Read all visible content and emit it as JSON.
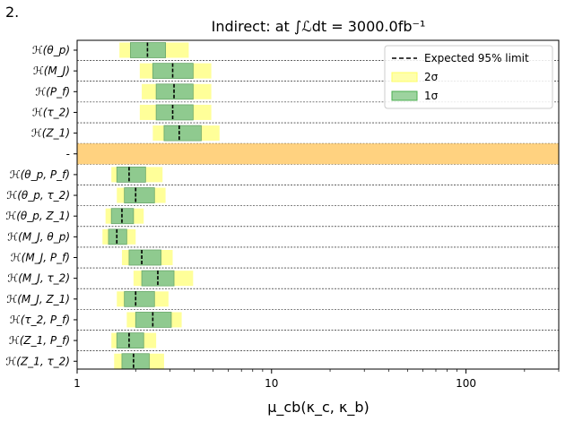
{
  "figure_label": "2.",
  "chart_data": {
    "type": "interval",
    "title": "Indirect: at ∫ℒdt = 3000.0fb⁻¹",
    "xlabel": "μ_cb(κ_c, κ_b)",
    "xscale": "log",
    "xlim": [
      1,
      300
    ],
    "xticks": [
      "1",
      "10",
      "100"
    ],
    "grid": "horizontal dashed separators between rows",
    "legend": {
      "placement": "top-right",
      "entries": [
        {
          "label": "Expected 95% limit",
          "style": "dashed",
          "color": "#000000"
        },
        {
          "label": "2σ",
          "color": "#ffff66"
        },
        {
          "label": "1σ",
          "color": "#4caf50"
        }
      ]
    },
    "colors": {
      "two_sigma": "#ffff99",
      "one_sigma": "#8fca8f",
      "separator_band": "#ffd280",
      "limit": "#000000"
    },
    "rows": [
      {
        "label": "ℋ(θ_p)",
        "two_sigma": [
          1.65,
          3.75
        ],
        "one_sigma": [
          1.88,
          2.85
        ],
        "limit": 2.3
      },
      {
        "label": "ℋ(M_J)",
        "two_sigma": [
          2.1,
          4.9
        ],
        "one_sigma": [
          2.45,
          3.95
        ],
        "limit": 3.1
      },
      {
        "label": "ℋ(P_f)",
        "two_sigma": [
          2.15,
          4.9
        ],
        "one_sigma": [
          2.55,
          3.95
        ],
        "limit": 3.15
      },
      {
        "label": "ℋ(τ_2)",
        "two_sigma": [
          2.1,
          4.9
        ],
        "one_sigma": [
          2.55,
          3.95
        ],
        "limit": 3.1
      },
      {
        "label": "ℋ(Z_1)",
        "two_sigma": [
          2.45,
          5.4
        ],
        "one_sigma": [
          2.8,
          4.35
        ],
        "limit": 3.35
      },
      {
        "label": "-",
        "separator": true
      },
      {
        "label": "ℋ(θ_p, P_f)",
        "two_sigma": [
          1.5,
          2.75
        ],
        "one_sigma": [
          1.6,
          2.25
        ],
        "limit": 1.85
      },
      {
        "label": "ℋ(θ_p, τ_2)",
        "two_sigma": [
          1.6,
          2.85
        ],
        "one_sigma": [
          1.75,
          2.5
        ],
        "limit": 2.0
      },
      {
        "label": "ℋ(θ_p, Z_1)",
        "two_sigma": [
          1.4,
          2.2
        ],
        "one_sigma": [
          1.5,
          1.95
        ],
        "limit": 1.7
      },
      {
        "label": "ℋ(M_J, θ_p)",
        "two_sigma": [
          1.35,
          2.0
        ],
        "one_sigma": [
          1.45,
          1.8
        ],
        "limit": 1.6
      },
      {
        "label": "ℋ(M_J, P_f)",
        "two_sigma": [
          1.7,
          3.1
        ],
        "one_sigma": [
          1.85,
          2.7
        ],
        "limit": 2.15
      },
      {
        "label": "ℋ(M_J, τ_2)",
        "two_sigma": [
          1.95,
          3.95
        ],
        "one_sigma": [
          2.15,
          3.15
        ],
        "limit": 2.6
      },
      {
        "label": "ℋ(M_J, Z_1)",
        "two_sigma": [
          1.6,
          2.95
        ],
        "one_sigma": [
          1.75,
          2.5
        ],
        "limit": 2.0
      },
      {
        "label": "ℋ(τ_2, P_f)",
        "two_sigma": [
          1.8,
          3.45
        ],
        "one_sigma": [
          2.0,
          3.05
        ],
        "limit": 2.45
      },
      {
        "label": "ℋ(Z_1, P_f)",
        "two_sigma": [
          1.5,
          2.55
        ],
        "one_sigma": [
          1.6,
          2.2
        ],
        "limit": 1.85
      },
      {
        "label": "ℋ(Z_1, τ_2)",
        "two_sigma": [
          1.55,
          2.8
        ],
        "one_sigma": [
          1.7,
          2.35
        ],
        "limit": 1.95
      }
    ]
  }
}
